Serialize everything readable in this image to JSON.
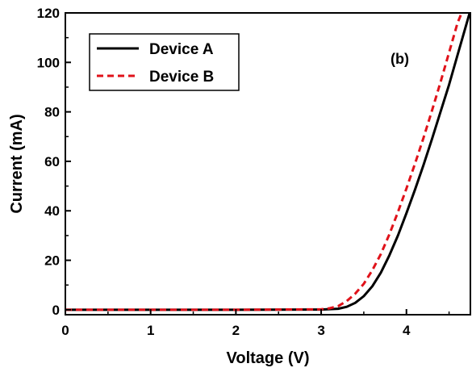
{
  "chart_data": {
    "type": "line",
    "xlabel": "Voltage (V)",
    "ylabel": "Current (mA)",
    "annotation": "(b)",
    "xlim": [
      0,
      4.75
    ],
    "ylim": [
      -2,
      120
    ],
    "xticks": [
      0,
      1,
      2,
      3,
      4
    ],
    "yticks": [
      0,
      20,
      40,
      60,
      80,
      100,
      120
    ],
    "tick_labels_x": [
      "0",
      "1",
      "2",
      "3",
      "4"
    ],
    "tick_labels_y": [
      "0",
      "20",
      "40",
      "60",
      "80",
      "100",
      "120"
    ],
    "grid": false,
    "legend_position": "top-left",
    "series": [
      {
        "name": "Device A",
        "color": "#000000",
        "style": "solid",
        "x": [
          0,
          1,
          2,
          3.0,
          3.2,
          3.3,
          3.4,
          3.5,
          3.6,
          3.7,
          3.8,
          3.9,
          4.0,
          4.1,
          4.2,
          4.3,
          4.4,
          4.5,
          4.6,
          4.7,
          4.75
        ],
        "y": [
          0,
          0,
          0,
          0.1,
          0.4,
          1.2,
          2.8,
          5.5,
          9.5,
          15,
          22,
          30,
          39,
          48.5,
          58.5,
          69,
          80,
          91,
          103,
          115,
          121
        ]
      },
      {
        "name": "Device B",
        "color": "#e0121a",
        "style": "dashed",
        "x": [
          0,
          1,
          2,
          3.0,
          3.1,
          3.2,
          3.3,
          3.4,
          3.5,
          3.6,
          3.7,
          3.8,
          3.9,
          4.0,
          4.1,
          4.2,
          4.3,
          4.4,
          4.5,
          4.6,
          4.66
        ],
        "y": [
          0,
          0,
          0,
          0.2,
          0.6,
          1.5,
          3.5,
          6.5,
          10.5,
          16,
          22.5,
          30.5,
          39.5,
          49,
          59,
          69.5,
          80.5,
          92,
          104,
          116,
          121
        ]
      }
    ]
  }
}
